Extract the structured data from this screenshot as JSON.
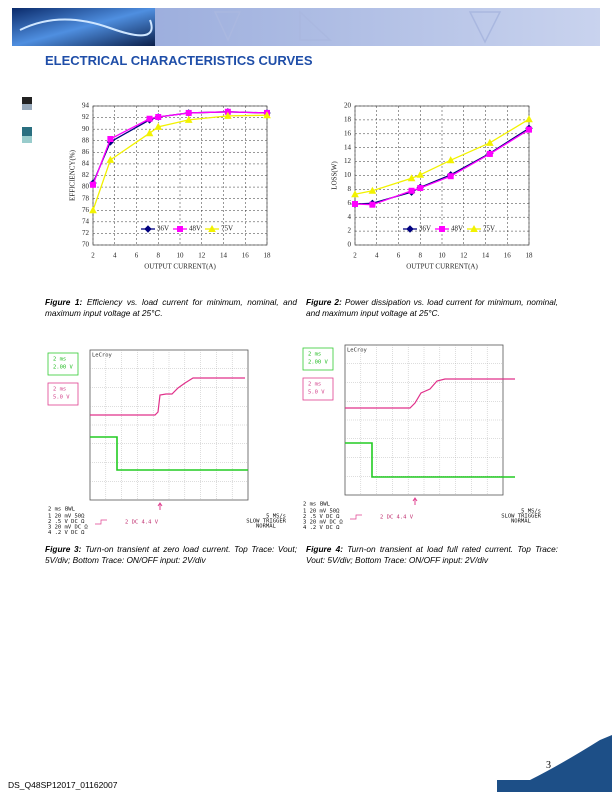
{
  "header": {
    "title": "ELECTRICAL CHARACTERISTICS CURVES"
  },
  "chart_data": [
    {
      "type": "line",
      "x_label": "OUTPUT CURRENT(A)",
      "y_label": "EFFICIENCY(%)",
      "x": [
        2,
        3.6,
        7.2,
        8,
        10.8,
        14.4,
        18
      ],
      "series": [
        {
          "name": "36V",
          "color": "#000080",
          "marker": "diamond",
          "values": [
            80.7,
            87.8,
            91.6,
            92.1,
            92.8,
            93,
            92.8
          ]
        },
        {
          "name": "48V",
          "color": "#ff00ff",
          "marker": "square",
          "values": [
            80.4,
            88.3,
            91.8,
            92.1,
            92.8,
            93,
            92.8
          ]
        },
        {
          "name": "75V",
          "color": "#f2f200",
          "marker": "triangle",
          "values": [
            76,
            84.7,
            89.3,
            90.4,
            91.6,
            92.3,
            92.4
          ]
        }
      ],
      "xlim": [
        2,
        18
      ],
      "xticks": [
        2,
        4,
        6,
        8,
        10,
        12,
        14,
        16,
        18
      ],
      "ylim": [
        70,
        94
      ],
      "yticks": [
        70,
        72,
        74,
        76,
        78,
        80,
        82,
        84,
        86,
        88,
        90,
        92,
        94
      ],
      "grid": true,
      "legend": "bottom"
    },
    {
      "type": "line",
      "x_label": "OUTPUT CURRENT(A)",
      "y_label": "LOSS(W)",
      "x": [
        2,
        3.6,
        7.2,
        8,
        10.8,
        14.4,
        18
      ],
      "series": [
        {
          "name": "36V",
          "color": "#000080",
          "marker": "diamond",
          "values": [
            5.9,
            6.0,
            7.6,
            8.3,
            10.1,
            13.2,
            16.8
          ]
        },
        {
          "name": "48V",
          "color": "#ff00ff",
          "marker": "square",
          "values": [
            5.9,
            5.8,
            7.8,
            8.2,
            9.9,
            13.1,
            16.6
          ]
        },
        {
          "name": "75V",
          "color": "#f2f200",
          "marker": "triangle",
          "values": [
            7.3,
            7.8,
            9.6,
            10.1,
            12.2,
            14.7,
            18.1
          ]
        }
      ],
      "xlim": [
        2,
        18
      ],
      "xticks": [
        2,
        4,
        6,
        8,
        10,
        12,
        14,
        16,
        18
      ],
      "ylim": [
        0,
        20
      ],
      "yticks": [
        0,
        2,
        4,
        6,
        8,
        10,
        12,
        14,
        16,
        18,
        20
      ],
      "grid": true,
      "legend": "bottom"
    }
  ],
  "figures": [
    {
      "label": "Figure 1:",
      "caption": "Efficiency vs. load current for minimum, nominal, and maximum input voltage at 25°C."
    },
    {
      "label": "Figure 2:",
      "caption": "Power dissipation vs. load current for minimum, nominal, and maximum input voltage at 25°C."
    },
    {
      "label": "Figure 3:",
      "caption": "Turn-on transient at zero load current. Top Trace: Vout; 5V/div; Bottom Trace: ON/OFF input: 2V/div"
    },
    {
      "label": "Figure 4:",
      "caption": "Turn-on transient at load full rated current. Top Trace: Vout: 5V/div; Bottom Trace: ON/OFF input: 2V/div"
    }
  ],
  "scopes": [
    {
      "green_box": [
        "2 ms",
        "2.00 V"
      ],
      "pink_box": [
        "2 ms",
        "5.0 V"
      ],
      "brand": "LeCroy",
      "timebase": "2 ms",
      "bwl": "BWL",
      "channels": [
        "1  20 mV  50Ω",
        "2  .5  V  DC Ω",
        "3  20 mV  DC Ω",
        "4  .2  V  DC Ω"
      ],
      "trigger": "2  DC 4.4 V",
      "rate": "5 MS/s",
      "mode": "SLOW TRIGGER",
      "state": "NORMAL"
    },
    {
      "green_box": [
        "2 ms",
        "2.00 V"
      ],
      "pink_box": [
        "2 ms",
        "5.0 V"
      ],
      "brand": "LeCroy",
      "timebase": "2 ms",
      "bwl": "BWL",
      "channels": [
        "1  20 mV  50Ω",
        "2  .5  V  DC Ω",
        "3  20 mV  DC Ω",
        "4  .2  V  DC Ω"
      ],
      "trigger": "2  DC 4.4 V",
      "rate": "5 MS/s",
      "mode": "SLOW TRIGGER",
      "state": "NORMAL"
    }
  ],
  "footer": {
    "doc_id": "DS_Q48SP12017_01162007",
    "page": "3"
  }
}
